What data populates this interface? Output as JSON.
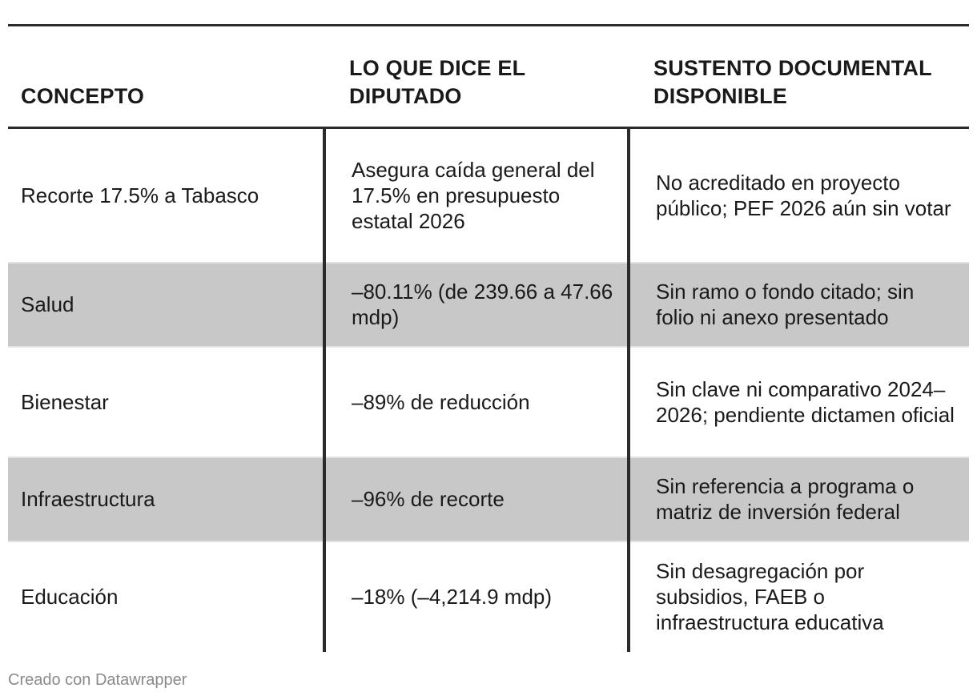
{
  "chart_data": {
    "type": "table",
    "columns": [
      "CONCEPTO",
      "LO QUE DICE EL DIPUTADO",
      "SUSTENTO DOCUMENTAL DISPONIBLE"
    ],
    "rows": [
      [
        "Recorte 17.5% a Tabasco",
        "Asegura caída general del 17.5% en presupuesto estatal 2026",
        "No acreditado en proyecto público; PEF 2026 aún sin votar"
      ],
      [
        "Salud",
        "–80.11% (de 239.66 a 47.66 mdp)",
        "Sin ramo o fondo citado; sin folio ni anexo presentado"
      ],
      [
        "Bienestar",
        "–89% de reducción",
        "Sin clave ni comparativo 2024–2026; pendiente dictamen oficial"
      ],
      [
        "Infraestructura",
        "–96% de recorte",
        "Sin referencia a programa o matriz de inversión federal"
      ],
      [
        "Educación",
        "–18% (–4,214.9 mdp)",
        "Sin desagregación por subsidios, FAEB o infraestructura educativa"
      ]
    ],
    "row_shading": [
      false,
      true,
      false,
      true,
      false
    ],
    "shade_color": "#c8c8c8"
  },
  "footer": {
    "credit": "Creado con Datawrapper"
  }
}
